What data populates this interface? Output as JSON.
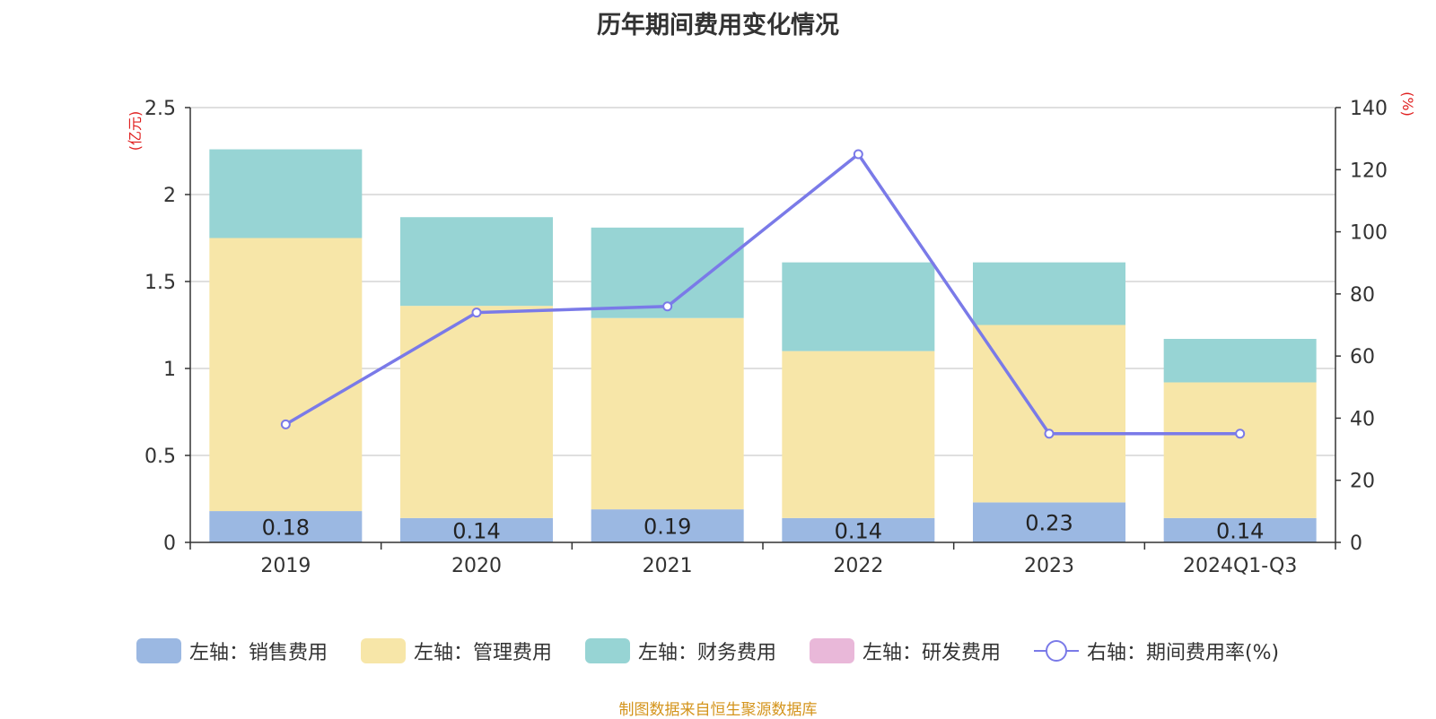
{
  "chart_data": {
    "type": "bar",
    "title": "历年期间费用变化情况",
    "categories": [
      "2019",
      "2020",
      "2021",
      "2022",
      "2023",
      "2024Q1-Q3"
    ],
    "left_axis": {
      "unit_label": "(亿元)",
      "ylim": [
        0,
        2.5
      ],
      "ticks": [
        "0",
        "0.5",
        "1",
        "1.5",
        "2",
        "2.5"
      ]
    },
    "right_axis": {
      "unit_label": "(%)",
      "ylim": [
        0,
        140
      ],
      "ticks": [
        "0",
        "20",
        "40",
        "60",
        "80",
        "100",
        "120",
        "140"
      ]
    },
    "series": [
      {
        "name": "左轴：销售费用",
        "axis": "left",
        "type": "bar",
        "color": "#9bb8e2",
        "values": [
          0.18,
          0.14,
          0.19,
          0.14,
          0.23,
          0.14
        ],
        "data_labels": [
          "0.18",
          "0.14",
          "0.19",
          "0.14",
          "0.23",
          "0.14"
        ]
      },
      {
        "name": "左轴：管理费用",
        "axis": "left",
        "type": "bar",
        "color": "#f7e6a8",
        "values": [
          1.57,
          1.22,
          1.1,
          0.96,
          1.02,
          0.78
        ]
      },
      {
        "name": "左轴：财务费用",
        "axis": "left",
        "type": "bar",
        "color": "#97d4d4",
        "values": [
          0.51,
          0.51,
          0.52,
          0.51,
          0.36,
          0.25
        ]
      },
      {
        "name": "左轴：研发费用",
        "axis": "left",
        "type": "bar",
        "color": "#e9b8d9",
        "values": [
          0,
          0,
          0,
          0,
          0,
          0
        ]
      },
      {
        "name": "右轴：期间费用率(%)",
        "axis": "right",
        "type": "line",
        "color": "#7a7ae8",
        "values": [
          38,
          74,
          76,
          125,
          35,
          35
        ]
      }
    ],
    "grid": true,
    "legend_position": "bottom"
  },
  "source_note": "制图数据来自恒生聚源数据库"
}
